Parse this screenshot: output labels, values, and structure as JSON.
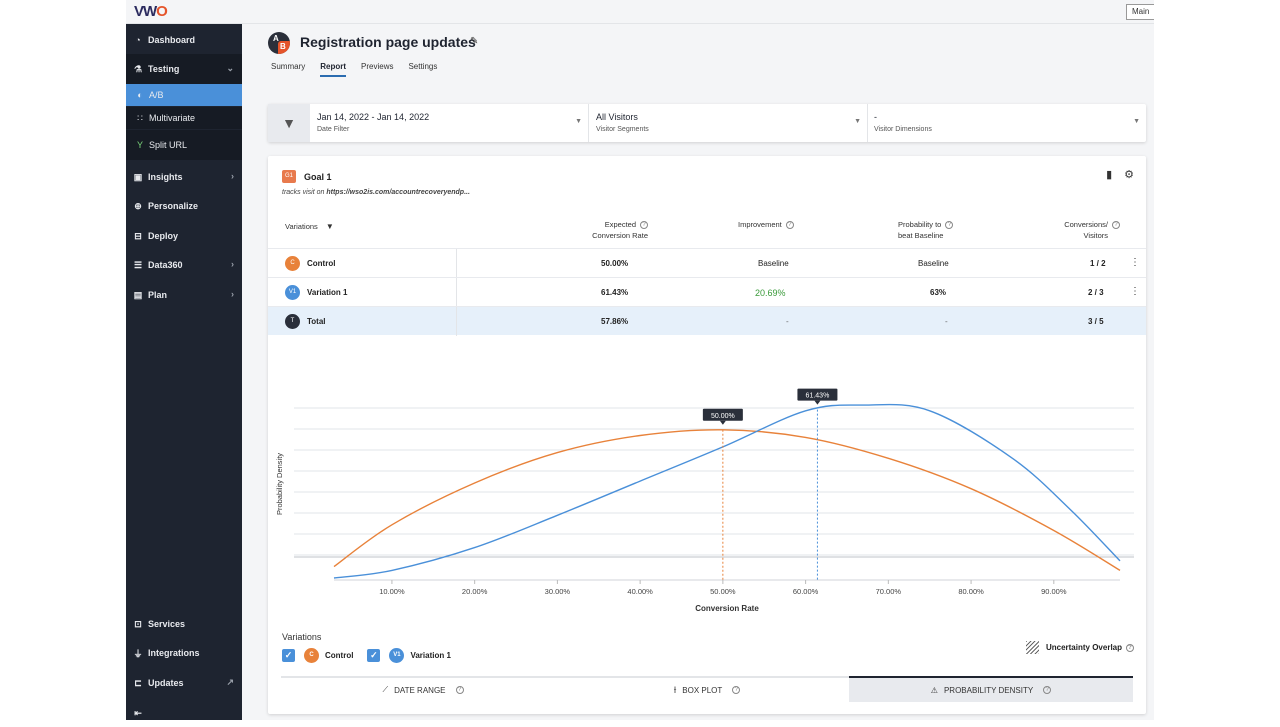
{
  "app": {
    "logo_main": "VW",
    "logo_accent": "O",
    "main_button": "Main"
  },
  "sidebar": {
    "items": [
      {
        "label": "Dashboard",
        "icon": "dashboard-icon"
      },
      {
        "label": "Testing",
        "icon": "flask-icon"
      },
      {
        "label": "Insights",
        "icon": "insights-icon"
      },
      {
        "label": "Personalize",
        "icon": "target-icon"
      },
      {
        "label": "Deploy",
        "icon": "deploy-icon"
      },
      {
        "label": "Data360",
        "icon": "database-icon"
      },
      {
        "label": "Plan",
        "icon": "plan-icon"
      }
    ],
    "testing_sub": [
      {
        "label": "A/B"
      },
      {
        "label": "Multivariate"
      },
      {
        "label": "Split URL"
      }
    ],
    "bottom": [
      {
        "label": "Services"
      },
      {
        "label": "Integrations"
      },
      {
        "label": "Updates"
      }
    ]
  },
  "header": {
    "title": "Registration page updates",
    "ab_a": "A",
    "ab_b": "B",
    "tabs": [
      "Summary",
      "Report",
      "Previews",
      "Settings"
    ]
  },
  "filters": {
    "date": {
      "value": "Jan 14, 2022 - Jan 14, 2022",
      "label": "Date Filter"
    },
    "segments": {
      "value": "All Visitors",
      "label": "Visitor Segments"
    },
    "dimensions": {
      "value": "-",
      "label": "Visitor Dimensions"
    }
  },
  "goal": {
    "badge": "G1",
    "title": "Goal 1",
    "subtitle_prefix": "tracks visit on ",
    "subtitle_url": "https://wso2is.com/accountrecoveryendp..."
  },
  "table": {
    "headers": {
      "variations": "Variations",
      "ecr_1": "Expected",
      "ecr_2": "Conversion Rate",
      "improvement": "Improvement",
      "prob_1": "Probability to",
      "prob_2": "beat Baseline",
      "conv_1": "Conversions/",
      "conv_2": "Visitors"
    },
    "rows": [
      {
        "badge": "C",
        "name": "Control",
        "rate": "50.00%",
        "improvement": "Baseline",
        "probability": "Baseline",
        "conversions": "1 / 2",
        "color": "#e8823a"
      },
      {
        "badge": "V1",
        "name": "Variation 1",
        "rate": "61.43%",
        "improvement": "20.69%",
        "probability": "63%",
        "conversions": "2 / 3",
        "color": "#4a90d9"
      },
      {
        "badge": "T",
        "name": "Total",
        "rate": "57.86%",
        "improvement": "-",
        "probability": "-",
        "conversions": "3 / 5",
        "color": "#2a2f3a"
      }
    ]
  },
  "chart_data": {
    "type": "line",
    "title": "",
    "xlabel": "Conversion Rate",
    "ylabel": "Probability Density",
    "xlim": [
      3,
      98
    ],
    "ylim": [
      0,
      1.0
    ],
    "x_ticks": [
      "10.00%",
      "20.00%",
      "30.00%",
      "40.00%",
      "50.00%",
      "60.00%",
      "70.00%",
      "80.00%",
      "90.00%"
    ],
    "x_tick_values": [
      10,
      20,
      30,
      40,
      50,
      60,
      70,
      80,
      90
    ],
    "series": [
      {
        "name": "Control",
        "color": "#e8823a",
        "x": [
          3,
          10,
          20,
          30,
          40,
          50,
          60,
          70,
          80,
          90,
          98
        ],
        "y": [
          0.06,
          0.28,
          0.5,
          0.66,
          0.75,
          0.78,
          0.74,
          0.63,
          0.47,
          0.25,
          0.04
        ]
      },
      {
        "name": "Variation 1",
        "color": "#4a90d9",
        "x": [
          3,
          10,
          20,
          30,
          40,
          50,
          60,
          67,
          75,
          85,
          92,
          98
        ],
        "y": [
          0.0,
          0.04,
          0.16,
          0.33,
          0.51,
          0.69,
          0.88,
          0.91,
          0.88,
          0.63,
          0.36,
          0.09
        ]
      }
    ],
    "markers": [
      {
        "series": "Control",
        "x": 50.0,
        "label": "50.00%"
      },
      {
        "series": "Variation 1",
        "x": 61.43,
        "label": "61.43%"
      }
    ]
  },
  "legend": {
    "title": "Variations",
    "items": [
      {
        "badge": "C",
        "label": "Control"
      },
      {
        "badge": "V1",
        "label": "Variation 1"
      }
    ],
    "uncertainty": "Uncertainty Overlap"
  },
  "bottom_tabs": [
    "DATE RANGE",
    "BOX PLOT",
    "PROBABILITY DENSITY"
  ]
}
